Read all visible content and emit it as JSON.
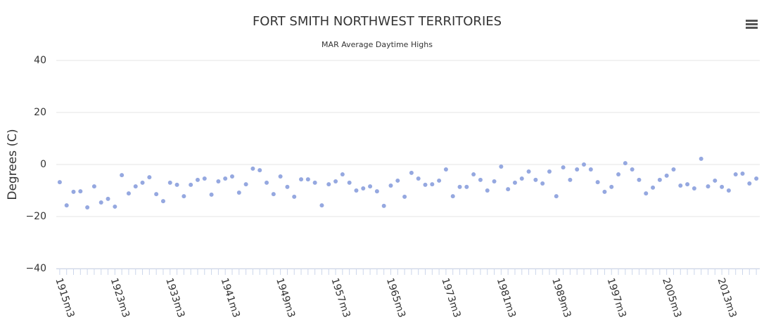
{
  "chart_data": {
    "type": "scatter",
    "title": "FORT SMITH NORTHWEST TERRITORIES",
    "subtitle": "MAR Average Daytime Highs",
    "y_label": "Degrees (C)",
    "color": "#95a8e0",
    "categories": [
      "1915m3",
      null,
      null,
      null,
      null,
      null,
      null,
      null,
      "1923m3",
      null,
      null,
      null,
      null,
      null,
      null,
      null,
      "1933m3",
      null,
      null,
      null,
      null,
      null,
      null,
      null,
      "1941m3",
      null,
      null,
      null,
      null,
      null,
      null,
      null,
      "1949m3",
      null,
      null,
      null,
      null,
      null,
      null,
      null,
      "1957m3",
      null,
      null,
      null,
      null,
      null,
      null,
      null,
      "1965m3",
      null,
      null,
      null,
      null,
      null,
      null,
      null,
      "1973m3",
      null,
      null,
      null,
      null,
      null,
      null,
      null,
      "1981m3",
      null,
      null,
      null,
      null,
      null,
      null,
      null,
      "1989m3",
      null,
      null,
      null,
      null,
      null,
      null,
      null,
      "1997m3",
      null,
      null,
      null,
      null,
      null,
      null,
      null,
      "2005m3",
      null,
      null,
      null,
      null,
      null,
      null,
      null,
      "2013m3",
      null,
      null,
      null,
      null,
      null
    ],
    "values": [
      -6.8,
      -15.7,
      -10.5,
      -10.3,
      -16.5,
      -8.4,
      -14.6,
      -13.2,
      -16.2,
      -4.1,
      -11.1,
      -8.4,
      -7.0,
      -4.9,
      -11.4,
      -14.1,
      -7.0,
      -7.8,
      -12.2,
      -7.8,
      -5.9,
      -5.4,
      -11.6,
      -6.5,
      -5.4,
      -4.6,
      -10.8,
      -7.6,
      -1.6,
      -2.2,
      -7.0,
      -11.4,
      -4.6,
      -8.6,
      -12.4,
      -5.7,
      -5.7,
      -7.0,
      -15.7,
      -7.6,
      -6.5,
      -3.8,
      -7.0,
      -10.0,
      -9.2,
      -8.4,
      -10.3,
      -15.9,
      -8.1,
      -6.2,
      -12.4,
      -3.2,
      -5.4,
      -7.8,
      -7.6,
      -6.2,
      -1.9,
      -12.2,
      -8.6,
      -8.6,
      -3.8,
      -5.9,
      -10.0,
      -6.5,
      -0.8,
      -9.5,
      -7.0,
      -5.4,
      -2.7,
      -5.9,
      -7.3,
      -2.7,
      -12.2,
      -1.1,
      -5.9,
      -1.9,
      0,
      -1.9,
      -6.8,
      -10.5,
      -8.6,
      -3.8,
      0.5,
      -1.9,
      -5.9,
      -11.1,
      -8.9,
      -5.9,
      -4.3,
      -1.9,
      -8.1,
      -7.6,
      -9.2,
      2.2,
      -8.4,
      -6.2,
      -8.6,
      -10.0,
      -3.8,
      -3.5,
      -7.3,
      -5.4
    ],
    "ylim": [
      -40,
      40
    ],
    "yticks": [
      {
        "value": -40,
        "label": "−40"
      },
      {
        "value": -20,
        "label": "−20"
      },
      0,
      20,
      40
    ],
    "grid": true
  }
}
